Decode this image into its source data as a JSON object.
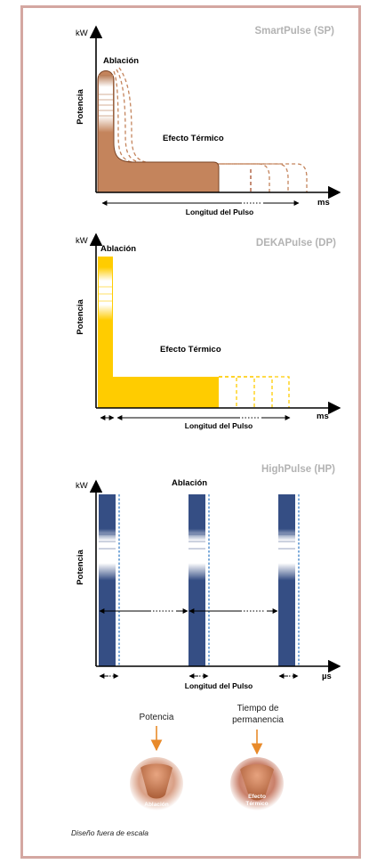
{
  "colors": {
    "frame": "#d4a7a1",
    "smartpulse": "#c4845c",
    "dekapulse": "#ffcc00",
    "highpulse": "#354e84",
    "dash_highpulse": "#3a80c8",
    "title_gray": "#b3b3b3",
    "arrow_orange": "#e88a2a"
  },
  "panels": [
    {
      "title": "SmartPulse (SP)",
      "y_unit": "kW",
      "x_unit": "ms",
      "y_axis_label": "Potencia",
      "ablation_label": "Ablación",
      "thermal_label": "Efecto Térmico",
      "length_label": "Longitud del Pulso"
    },
    {
      "title": "DEKAPulse (DP)",
      "y_unit": "kW",
      "x_unit": "ms",
      "y_axis_label": "Potencia",
      "ablation_label": "Ablación",
      "thermal_label": "Efecto Térmico",
      "length_label": "Longitud del Pulso"
    },
    {
      "title": "HighPulse (HP)",
      "y_unit": "kW",
      "x_unit": "µs",
      "y_axis_label": "Potencia",
      "ablation_label": "Ablación",
      "length_label": "Longitud del Pulso"
    }
  ],
  "legend": {
    "power_label": "Potencia",
    "dwell_label": "Tiempo de\npermanencia",
    "dwell_line1": "Tiempo de",
    "dwell_line2": "permanencia",
    "ablation_circle": "Ablación",
    "thermal_circle_line1": "Efecto",
    "thermal_circle_line2": "Térmico"
  },
  "footnote": "Diseño fuera de escala"
}
